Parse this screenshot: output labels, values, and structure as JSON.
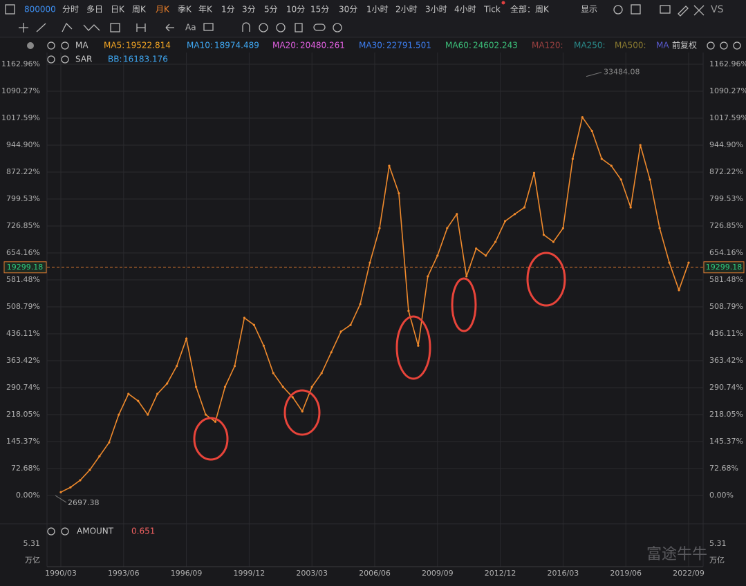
{
  "toolbar": {
    "code": "800000",
    "periods": [
      "分时",
      "多日",
      "日K",
      "周K",
      "月K",
      "季K",
      "年K",
      "1分",
      "3分",
      "5分",
      "10分",
      "15分",
      "30分",
      "1小时",
      "2小时",
      "3小时",
      "4小时",
      "Tick"
    ],
    "range": "全部：周K",
    "display": "显示",
    "vs": "VS"
  },
  "indicators": {
    "ma_label": "MA",
    "adjust": "前复权",
    "items": [
      {
        "label": "MA5:",
        "value": "19522.814",
        "color": "#f5a623"
      },
      {
        "label": "MA10:",
        "value": "18974.489",
        "color": "#3fa9f5"
      },
      {
        "label": "MA20:",
        "value": "20480.261",
        "color": "#e060e0"
      },
      {
        "label": "MA30:",
        "value": "22791.501",
        "color": "#3d7ef0"
      },
      {
        "label": "MA60:",
        "value": "24602.243",
        "color": "#3cc07a"
      },
      {
        "label": "MA120:",
        "color": "#9a4040"
      },
      {
        "label": "MA250:",
        "color": "#2a8a8a"
      },
      {
        "label": "MA500:",
        "color": "#8a7a30"
      },
      {
        "label": "MA",
        "color": "#5a5ad0"
      }
    ]
  },
  "sar": {
    "label": "SAR",
    "bb_label": "BB:",
    "bb_value": "16183.176"
  },
  "amount": {
    "label": "AMOUNT",
    "value": "0.651",
    "max": "5.31",
    "unit": "万亿"
  },
  "watermark": "富途牛牛",
  "chart_data": {
    "type": "line",
    "color": "#f08a2c",
    "x": [
      "1990/03",
      "1990/09",
      "1991/03",
      "1991/09",
      "1992/03",
      "1992/09",
      "1993/03",
      "1993/09",
      "1994/03",
      "1994/09",
      "1995/03",
      "1995/09",
      "1996/03",
      "1996/09",
      "1997/03",
      "1997/09",
      "1998/03",
      "1998/09",
      "1999/03",
      "1999/09",
      "2000/03",
      "2000/09",
      "2001/03",
      "2001/09",
      "2002/03",
      "2002/09",
      "2003/03",
      "2003/09",
      "2004/03",
      "2004/09",
      "2005/03",
      "2005/09",
      "2006/03",
      "2006/09",
      "2007/03",
      "2007/09",
      "2008/03",
      "2008/09",
      "2009/03",
      "2009/09",
      "2010/03",
      "2010/09",
      "2011/03",
      "2011/09",
      "2012/03",
      "2012/09",
      "2013/03",
      "2013/09",
      "2014/03",
      "2014/09",
      "2015/03",
      "2015/09",
      "2016/03",
      "2016/09",
      "2017/03",
      "2017/09",
      "2018/03",
      "2018/09",
      "2019/03",
      "2019/09",
      "2020/03",
      "2020/09",
      "2021/03",
      "2021/09",
      "2022/03",
      "2022/09"
    ],
    "values": [
      9,
      22,
      41,
      69,
      106,
      143,
      218,
      274,
      255,
      218,
      274,
      302,
      349,
      423,
      293,
      218,
      199,
      293,
      349,
      479,
      460,
      404,
      330,
      293,
      265,
      227,
      293,
      330,
      386,
      442,
      460,
      516,
      628,
      721,
      889,
      815,
      498,
      404,
      591,
      647,
      721,
      759,
      591,
      666,
      647,
      684,
      740,
      759,
      777,
      870,
      703,
      684,
      721,
      908,
      1020,
      983,
      908,
      889,
      852,
      777,
      945,
      852,
      721,
      628,
      554,
      628
    ],
    "ylim": [
      -74.5,
      1191
    ],
    "yticks": [
      {
        "value": 0,
        "label": "0.00%"
      },
      {
        "value": 72.68,
        "label": "72.68%"
      },
      {
        "value": 145.37,
        "label": "145.37%"
      },
      {
        "value": 218.05,
        "label": "218.05%"
      },
      {
        "value": 290.74,
        "label": "290.74%"
      },
      {
        "value": 363.42,
        "label": "363.42%"
      },
      {
        "value": 436.11,
        "label": "436.11%"
      },
      {
        "value": 508.79,
        "label": "508.79%"
      },
      {
        "value": 581.48,
        "label": "581.48%"
      },
      {
        "value": 654.16,
        "label": "654.16%"
      },
      {
        "value": 726.85,
        "label": "726.85%"
      },
      {
        "value": 799.53,
        "label": "799.53%"
      },
      {
        "value": 872.22,
        "label": "872.22%"
      },
      {
        "value": 944.9,
        "label": "944.90%"
      },
      {
        "value": 1017.59,
        "label": "1017.59%"
      },
      {
        "value": 1090.27,
        "label": "1090.27%"
      },
      {
        "value": 1162.96,
        "label": "1162.96%"
      }
    ],
    "xticks": [
      "1990/03",
      "1993/06",
      "1996/09",
      "1999/12",
      "2003/03",
      "2006/06",
      "2009/09",
      "2012/12",
      "2016/03",
      "2019/06",
      "2022/09"
    ],
    "high_label": "33484.08",
    "low_label": "2697.38",
    "last_price_label": "19299.18",
    "grid": true
  }
}
